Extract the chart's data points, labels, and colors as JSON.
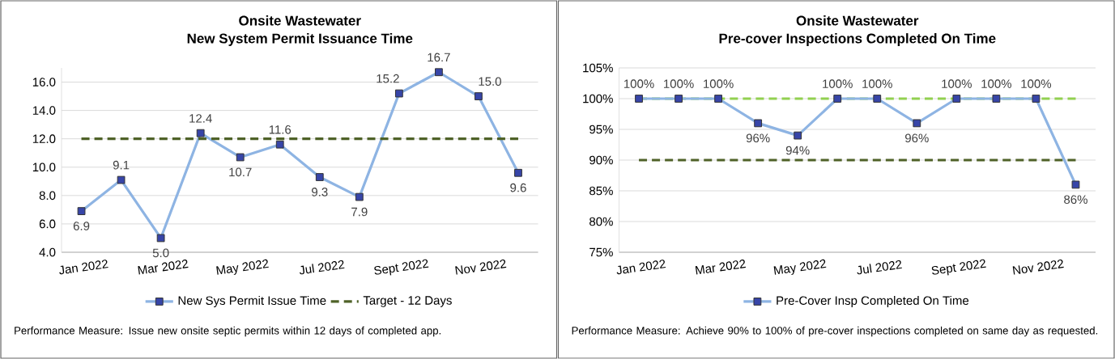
{
  "chart_data": [
    {
      "type": "line",
      "title": "Onsite Wastewater",
      "subtitle": "New System Permit Issuance Time",
      "categories": [
        "Jan 2022",
        null,
        "Mar 2022",
        null,
        "May 2022",
        null,
        "Jul 2022",
        null,
        "Sept 2022",
        null,
        "Nov 2022",
        null
      ],
      "series": [
        {
          "name": "New Sys Permit Issue Time",
          "color": "#8eb4e3",
          "marker": "square",
          "values": [
            6.9,
            9.1,
            5.0,
            12.4,
            10.7,
            11.6,
            9.3,
            7.9,
            15.2,
            16.7,
            15.0,
            9.6
          ],
          "value_labels": [
            "6.9",
            "9.1",
            "5.0",
            "12.4",
            "10.7",
            "11.6",
            "9.3",
            "7.9",
            "15.2",
            "16.7",
            "15.0",
            "9.6"
          ]
        },
        {
          "name": "Target - 12 Days",
          "color": "#4f6228",
          "line_style": "dashed",
          "values": [
            12,
            12,
            12,
            12,
            12,
            12,
            12,
            12,
            12,
            12,
            12,
            12
          ]
        }
      ],
      "ylim": [
        4,
        17
      ],
      "yticks": [
        {
          "value": 4,
          "label": "4.0"
        },
        {
          "value": 6,
          "label": "6.0"
        },
        {
          "value": 8,
          "label": "8.0"
        },
        {
          "value": 10,
          "label": "10.0"
        },
        {
          "value": 12,
          "label": "12.0"
        },
        {
          "value": 14,
          "label": "14.0"
        },
        {
          "value": 16,
          "label": "16.0"
        }
      ],
      "grid": "y",
      "legend": "bottom",
      "annotations": [
        "Performance Measure: Issue new onsite septic permits within 12 days of completed app."
      ]
    },
    {
      "type": "line",
      "title": "Onsite Wastewater",
      "subtitle": "Pre-cover Inspections Completed On Time",
      "categories": [
        "Jan 2022",
        null,
        "Mar 2022",
        null,
        "May 2022",
        null,
        "Jul 2022",
        null,
        "Sept 2022",
        null,
        "Nov 2022",
        null
      ],
      "series": [
        {
          "name": "Pre-Cover Insp Completed On Time",
          "color": "#8eb4e3",
          "marker": "square",
          "values": [
            100,
            100,
            100,
            96,
            94,
            100,
            100,
            96,
            100,
            100,
            100,
            86
          ],
          "value_labels": [
            "100%",
            "100%",
            "100%",
            "96%",
            "94%",
            "100%",
            "100%",
            "96%",
            "100%",
            "100%",
            "100%",
            "86%"
          ]
        }
      ],
      "ylim": [
        75,
        105
      ],
      "yticks": [
        {
          "value": 75,
          "label": "75%"
        },
        {
          "value": 80,
          "label": "80%"
        },
        {
          "value": 85,
          "label": "85%"
        },
        {
          "value": 90,
          "label": "90%"
        },
        {
          "value": 95,
          "label": "95%"
        },
        {
          "value": 100,
          "label": "100%"
        },
        {
          "value": 105,
          "label": "105%"
        }
      ],
      "ref_lines": [
        {
          "axis": "y",
          "value": 100,
          "color": "#92d050",
          "line_style": "dashed"
        },
        {
          "axis": "y",
          "value": 90,
          "color": "#4f6228",
          "line_style": "dashed"
        }
      ],
      "grid": "y",
      "legend": "bottom",
      "annotations": [
        "Performance Measure: Achieve 90% to 100% of pre-cover inspections completed on same day as requested."
      ]
    }
  ]
}
